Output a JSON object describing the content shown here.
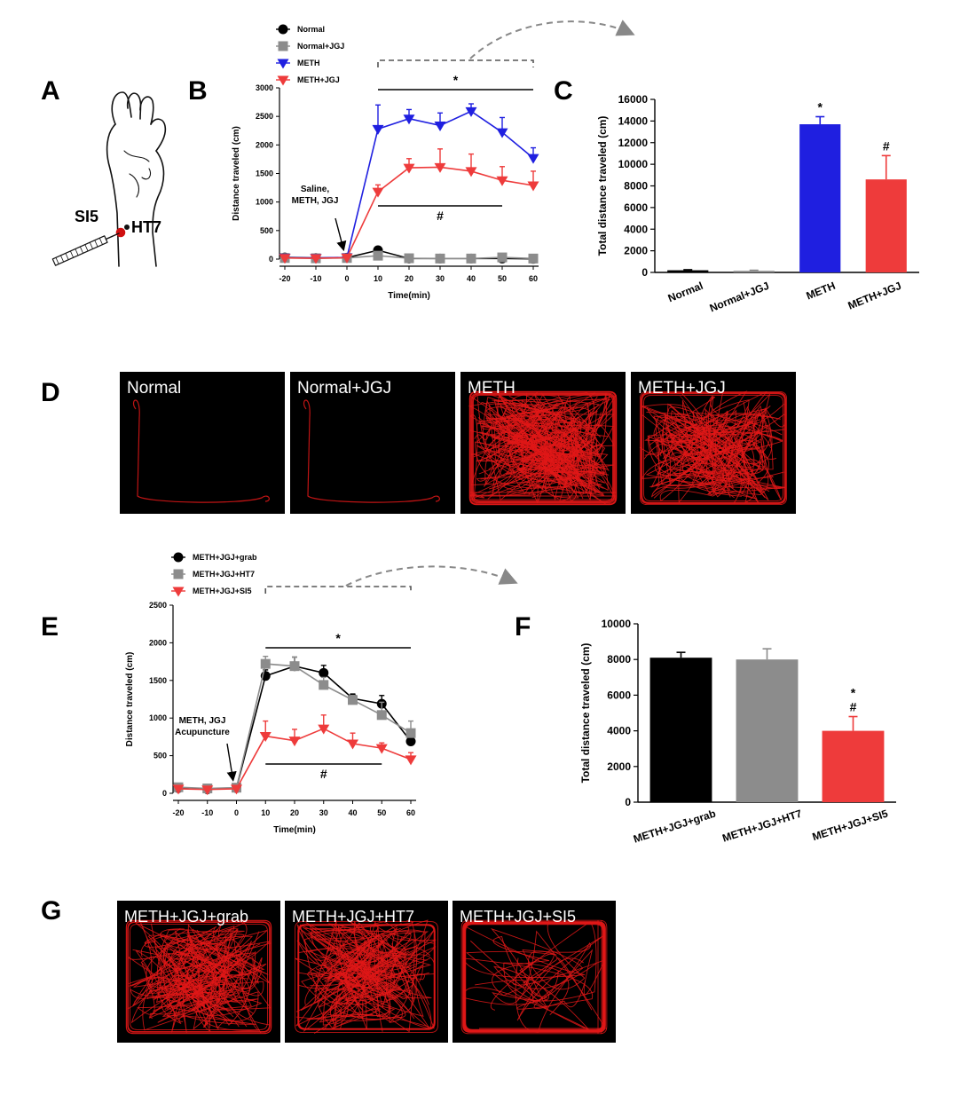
{
  "panels": {
    "A": "A",
    "B": "B",
    "C": "C",
    "D": "D",
    "E": "E",
    "F": "F",
    "G": "G"
  },
  "panel_a": {
    "sites": [
      "SI5",
      "HT7"
    ]
  },
  "colors": {
    "normal": "#000000",
    "normal_jjg": "#8c8c8c",
    "meth": "#1f1fe0",
    "meth_jgj": "#ee3b3b",
    "grab": "#000000",
    "ht7": "#8c8c8c",
    "si5": "#ee3b3b",
    "track": "#e01818"
  },
  "chart_data": [
    {
      "id": "B",
      "type": "line",
      "xlabel": "Time(min)",
      "ylabel": "Distance traveled (cm)",
      "x": [
        -20,
        -10,
        0,
        10,
        20,
        30,
        40,
        50,
        60
      ],
      "xticks": [
        "-20",
        "-10",
        "0",
        "10",
        "20",
        "30",
        "40",
        "50",
        "60"
      ],
      "ylim": [
        0,
        3000
      ],
      "yticks": [
        "0",
        "500",
        "1000",
        "1500",
        "2000",
        "2500",
        "3000"
      ],
      "series": [
        {
          "name": "Normal",
          "marker": "circle",
          "color": "#000000",
          "values": [
            30,
            20,
            25,
            155,
            10,
            10,
            10,
            10,
            5
          ],
          "err": [
            20,
            15,
            15,
            35,
            10,
            10,
            10,
            10,
            10
          ]
        },
        {
          "name": "Normal+JGJ",
          "marker": "square",
          "color": "#8c8c8c",
          "values": [
            20,
            15,
            20,
            60,
            15,
            10,
            10,
            30,
            10
          ],
          "err": [
            15,
            10,
            10,
            20,
            10,
            10,
            10,
            15,
            10
          ]
        },
        {
          "name": "METH",
          "marker": "triangle-down",
          "color": "#1f1fe0",
          "values": [
            25,
            20,
            30,
            2280,
            2460,
            2340,
            2590,
            2220,
            1770
          ],
          "err": [
            15,
            10,
            10,
            420,
            160,
            220,
            130,
            260,
            180
          ]
        },
        {
          "name": "METH+JGJ",
          "marker": "triangle-down",
          "color": "#ee3b3b",
          "values": [
            20,
            15,
            25,
            1180,
            1600,
            1610,
            1540,
            1380,
            1290
          ],
          "err": [
            15,
            10,
            10,
            120,
            160,
            320,
            300,
            240,
            250
          ]
        }
      ],
      "annotation": {
        "text": "Saline,\nMETH, JGJ",
        "lines": [
          "Saline,",
          "METH, JGJ"
        ]
      },
      "sig_star": "*",
      "sig_hash": "#"
    },
    {
      "id": "C",
      "type": "bar",
      "ylabel": "Total distance traveled (cm)",
      "categories": [
        "Normal",
        "Normal+JGJ",
        "METH",
        "METH+JGJ"
      ],
      "values": [
        200,
        150,
        13700,
        8600
      ],
      "err": [
        50,
        50,
        700,
        2200
      ],
      "colors": [
        "#000000",
        "#8c8c8c",
        "#1f1fe0",
        "#ee3b3b"
      ],
      "ylim": [
        0,
        16000
      ],
      "yticks": [
        "0",
        "2000",
        "4000",
        "6000",
        "8000",
        "10000",
        "12000",
        "14000",
        "16000"
      ],
      "sig": [
        "",
        "",
        "*",
        "#"
      ]
    },
    {
      "id": "E",
      "type": "line",
      "xlabel": "Time(min)",
      "ylabel": "Distance traveled (cm)",
      "x": [
        -20,
        -10,
        0,
        10,
        20,
        30,
        40,
        50,
        60
      ],
      "xticks": [
        "-20",
        "-10",
        "0",
        "10",
        "20",
        "30",
        "40",
        "50",
        "60"
      ],
      "ylim": [
        0,
        2500
      ],
      "yticks": [
        "0",
        "500",
        "1000",
        "1500",
        "2000",
        "2500"
      ],
      "series": [
        {
          "name": "METH+JGJ+grab",
          "marker": "circle",
          "color": "#000000",
          "values": [
            70,
            55,
            70,
            1560,
            1690,
            1600,
            1260,
            1190,
            690
          ],
          "err": [
            30,
            25,
            25,
            80,
            120,
            100,
            60,
            110,
            90
          ]
        },
        {
          "name": "METH+JGJ+HT7",
          "marker": "square",
          "color": "#8c8c8c",
          "values": [
            80,
            65,
            75,
            1720,
            1690,
            1440,
            1240,
            1040,
            800
          ],
          "err": [
            30,
            25,
            25,
            100,
            120,
            100,
            60,
            170,
            160
          ]
        },
        {
          "name": "METH+JGJ+SI5",
          "marker": "triangle-down",
          "color": "#ee3b3b",
          "values": [
            60,
            50,
            60,
            760,
            700,
            860,
            660,
            600,
            450
          ],
          "err": [
            25,
            20,
            20,
            200,
            150,
            180,
            140,
            70,
            90
          ]
        }
      ],
      "annotation": {
        "text": "METH, JGJ\nAcupuncture",
        "lines": [
          "METH, JGJ",
          "Acupuncture"
        ]
      },
      "sig_star": "*",
      "sig_hash": "#"
    },
    {
      "id": "F",
      "type": "bar",
      "ylabel": "Total distance traveled (cm)",
      "categories": [
        "METH+JGJ+grab",
        "METH+JGJ+HT7",
        "METH+JGJ+SI5"
      ],
      "values": [
        8100,
        8000,
        4000
      ],
      "err": [
        300,
        600,
        800
      ],
      "colors": [
        "#000000",
        "#8c8c8c",
        "#ee3b3b"
      ],
      "ylim": [
        0,
        10000
      ],
      "yticks": [
        "0",
        "2000",
        "4000",
        "6000",
        "8000",
        "10000"
      ],
      "sig": [
        "",
        "",
        "*#"
      ]
    }
  ],
  "tracks_d": [
    {
      "label": "Normal",
      "density": "low"
    },
    {
      "label": "Normal+JGJ",
      "density": "low"
    },
    {
      "label": "METH",
      "density": "very-high"
    },
    {
      "label": "METH+JGJ",
      "density": "high"
    }
  ],
  "tracks_g": [
    {
      "label": "METH+JGJ+grab",
      "density": "high"
    },
    {
      "label": "METH+JGJ+HT7",
      "density": "high"
    },
    {
      "label": "METH+JGJ+SI5",
      "density": "perimeter"
    }
  ]
}
